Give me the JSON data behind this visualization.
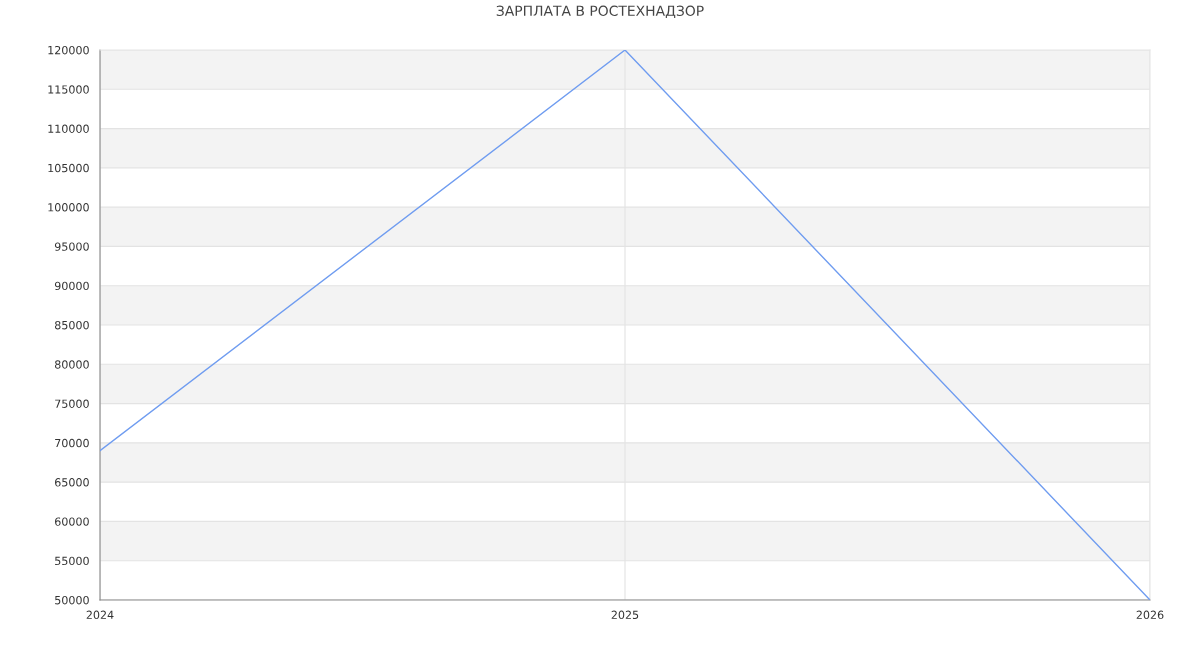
{
  "chart_data": {
    "type": "line",
    "title": "ЗАРПЛАТА В РОСТЕХНАДЗОР",
    "x": [
      2024,
      2025,
      2026
    ],
    "series": [
      {
        "color": "#6f9cf0",
        "values": [
          69000,
          120000,
          50000
        ]
      }
    ],
    "xlim": [
      2024,
      2026
    ],
    "xticks": [
      2024,
      2025,
      2026
    ],
    "ylim": [
      50000,
      120000
    ],
    "yticks": [
      50000,
      55000,
      60000,
      65000,
      70000,
      75000,
      80000,
      85000,
      90000,
      95000,
      100000,
      105000,
      110000,
      115000,
      120000
    ],
    "bands": [
      {
        "axis": "y",
        "from": 55000,
        "to": 60000,
        "color": "#f3f3f3"
      },
      {
        "axis": "y",
        "from": 65000,
        "to": 70000,
        "color": "#f3f3f3"
      },
      {
        "axis": "y",
        "from": 75000,
        "to": 80000,
        "color": "#f3f3f3"
      },
      {
        "axis": "y",
        "from": 85000,
        "to": 90000,
        "color": "#f3f3f3"
      },
      {
        "axis": "y",
        "from": 95000,
        "to": 100000,
        "color": "#f3f3f3"
      },
      {
        "axis": "y",
        "from": 105000,
        "to": 110000,
        "color": "#f3f3f3"
      },
      {
        "axis": "y",
        "from": 115000,
        "to": 120000,
        "color": "#f3f3f3"
      }
    ],
    "grid": true,
    "marker": "none",
    "line_style": "solid"
  }
}
